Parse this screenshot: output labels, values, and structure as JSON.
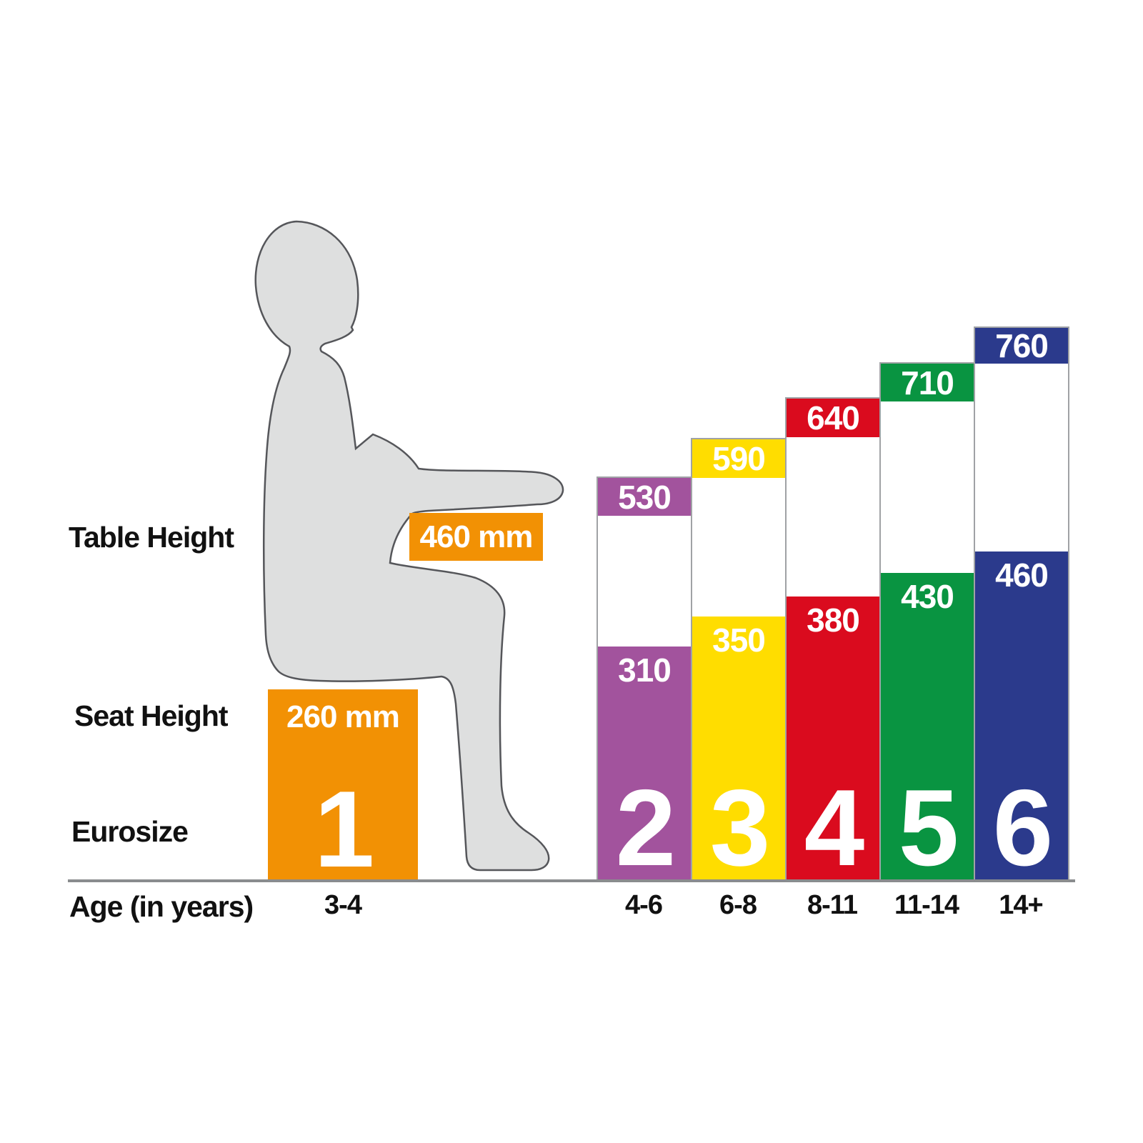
{
  "labels": {
    "table_height": "Table Height",
    "seat_height": "Seat Height",
    "eurosize": "Eurosize",
    "age": "Age (in years)"
  },
  "sizes": [
    {
      "eurosize": "1",
      "age": "3-4",
      "table": "460 mm",
      "seat": "260 mm",
      "color": "#F29104"
    },
    {
      "eurosize": "2",
      "age": "4-6",
      "table": "530",
      "seat": "310",
      "color": "#A2539D"
    },
    {
      "eurosize": "3",
      "age": "6-8",
      "table": "590",
      "seat": "350",
      "color": "#FFDD00"
    },
    {
      "eurosize": "4",
      "age": "8-11",
      "table": "640",
      "seat": "380",
      "color": "#DA0B1E"
    },
    {
      "eurosize": "5",
      "age": "11-14",
      "table": "710",
      "seat": "430",
      "color": "#099441"
    },
    {
      "eurosize": "6",
      "age": "14+",
      "table": "760",
      "seat": "460",
      "color": "#2B3A8C"
    }
  ],
  "chart_data": {
    "type": "bar",
    "categories": [
      "3-4",
      "4-6",
      "6-8",
      "8-11",
      "11-14",
      "14+"
    ],
    "series": [
      {
        "name": "Table Height",
        "unit": "mm",
        "values": [
          460,
          530,
          590,
          640,
          710,
          760
        ]
      },
      {
        "name": "Seat Height",
        "unit": "mm",
        "values": [
          260,
          310,
          350,
          380,
          430,
          460
        ]
      }
    ],
    "group_label_name": "Eurosize",
    "group_labels": [
      "1",
      "2",
      "3",
      "4",
      "5",
      "6"
    ],
    "xlabel": "Age (in years)",
    "colors": [
      "#F29104",
      "#A2539D",
      "#FFDD00",
      "#DA0B1E",
      "#099441",
      "#2B3A8C"
    ],
    "legend": false,
    "grid": false,
    "annotations": [
      "Size 1 is illustrated by a seated child silhouette with orange table (460 mm) and seat (260 mm) blocks"
    ]
  },
  "style_colors": {
    "silhouette_fill": "#DEDFDF",
    "silhouette_outline": "#55565A",
    "baseline": "#8A8C8E",
    "bar_outline": "#A0A2A5",
    "text": "#111111",
    "value_text": "#FFFFFF"
  }
}
